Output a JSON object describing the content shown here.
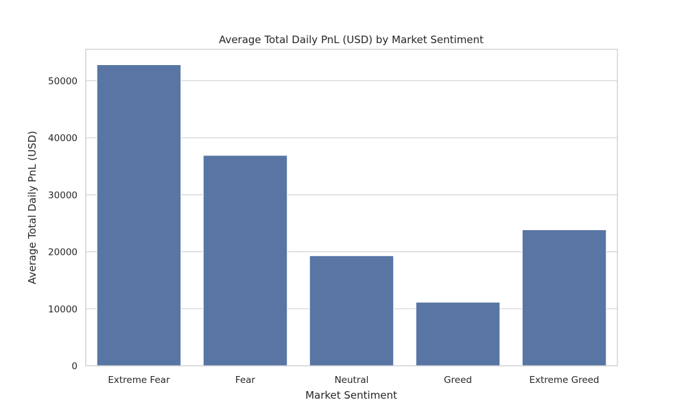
{
  "chart_data": {
    "type": "bar",
    "title": "Average Total Daily PnL (USD) by Market Sentiment",
    "xlabel": "Market Sentiment",
    "ylabel": "Average Total Daily PnL (USD)",
    "categories": [
      "Extreme Fear",
      "Fear",
      "Neutral",
      "Greed",
      "Extreme Greed"
    ],
    "values": [
      52800,
      36900,
      19300,
      11150,
      23850
    ],
    "ylim": [
      0,
      55500
    ],
    "yticks": [
      0,
      10000,
      20000,
      30000,
      40000,
      50000
    ],
    "ytick_labels": [
      "0",
      "10000",
      "20000",
      "30000",
      "40000",
      "50000"
    ],
    "grid": "horizontal",
    "bar_color": "#5875a4",
    "grid_color": "#cfd0d2",
    "text_color": "#262626"
  }
}
